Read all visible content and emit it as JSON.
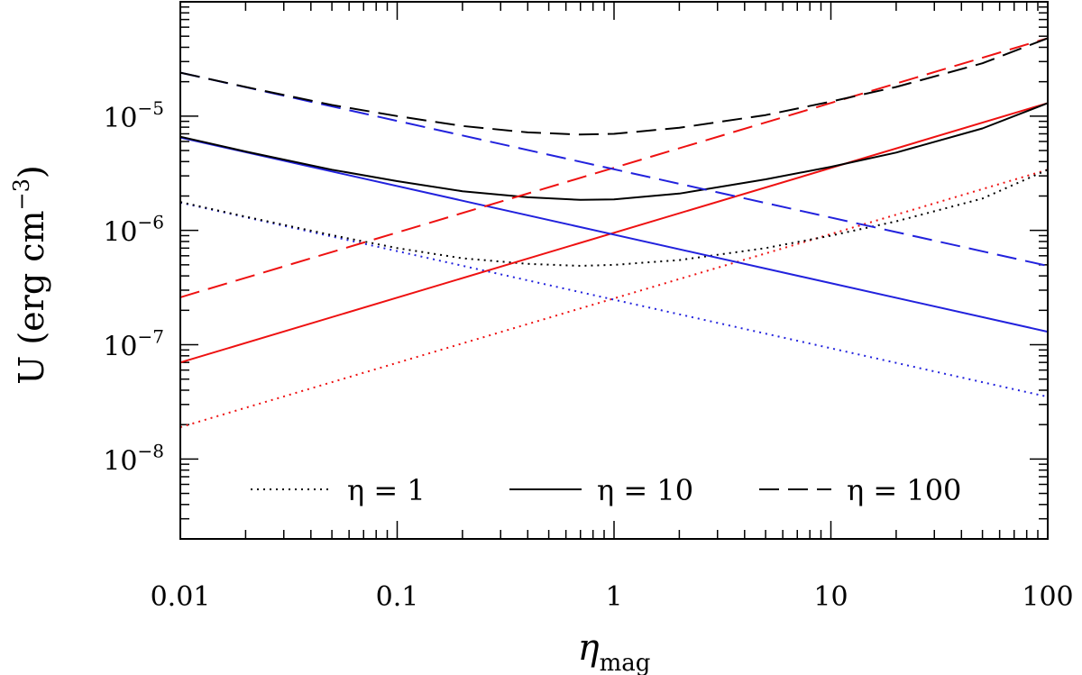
{
  "chart_data": {
    "type": "line",
    "x_scale": "log",
    "y_scale": "log",
    "xlim": [
      0.01,
      100
    ],
    "ylim": [
      2e-09,
      0.0001
    ],
    "grid": false,
    "legend_placement": "bottom",
    "xlabel": {
      "base": "η",
      "sub": "mag"
    },
    "ylabel": {
      "main": "U (erg cm",
      "sup": "−3",
      "close": ")"
    },
    "xticks": [
      {
        "value": 0.01,
        "label": "0.01"
      },
      {
        "value": 0.1,
        "label": "0.1"
      },
      {
        "value": 1,
        "label": "1"
      },
      {
        "value": 10,
        "label": "10"
      },
      {
        "value": 100,
        "label": "100"
      }
    ],
    "yticks": [
      {
        "value": 1e-08,
        "base": "10",
        "exp": "−8"
      },
      {
        "value": 1e-07,
        "base": "10",
        "exp": "−7"
      },
      {
        "value": 1e-06,
        "base": "10",
        "exp": "−6"
      },
      {
        "value": 1e-05,
        "base": "10",
        "exp": "−5"
      }
    ],
    "colors": {
      "total": "#000000",
      "particle": "#2222dd",
      "magnetic": "#ee1111"
    },
    "legend": [
      {
        "style": "dotted",
        "label": "η = 1"
      },
      {
        "style": "solid",
        "label": "η = 10"
      },
      {
        "style": "dashed",
        "label": "η = 100"
      }
    ],
    "series": [
      {
        "component": "magnetic",
        "style": "dotted",
        "color": "#ee1111",
        "x": [
          0.01,
          100
        ],
        "y": [
          1.9e-08,
          3.4e-06
        ]
      },
      {
        "component": "particle",
        "style": "dotted",
        "color": "#2222dd",
        "x": [
          0.01,
          100
        ],
        "y": [
          1.75e-06,
          3.5e-08
        ]
      },
      {
        "component": "total",
        "style": "dotted",
        "color": "#000000",
        "x": [
          0.01,
          0.02,
          0.05,
          0.1,
          0.2,
          0.4,
          0.7,
          1,
          2,
          5,
          10,
          20,
          50,
          100
        ],
        "y": [
          1.77e-06,
          1.32e-06,
          9.1e-07,
          7e-07,
          5.7e-07,
          5.1e-07,
          4.9e-07,
          5e-07,
          5.5e-07,
          7e-07,
          9e-07,
          1.2e-06,
          1.9e-06,
          3.4e-06
        ]
      },
      {
        "component": "magnetic",
        "style": "solid",
        "color": "#ee1111",
        "x": [
          0.01,
          100
        ],
        "y": [
          7e-08,
          1.3e-05
        ]
      },
      {
        "component": "particle",
        "style": "solid",
        "color": "#2222dd",
        "x": [
          0.01,
          100
        ],
        "y": [
          6.5e-06,
          1.3e-07
        ]
      },
      {
        "component": "total",
        "style": "solid",
        "color": "#000000",
        "x": [
          0.01,
          0.02,
          0.05,
          0.1,
          0.2,
          0.4,
          0.7,
          1,
          2,
          5,
          10,
          20,
          50,
          100
        ],
        "y": [
          6.6e-06,
          4.9e-06,
          3.4e-06,
          2.7e-06,
          2.2e-06,
          1.95e-06,
          1.85e-06,
          1.87e-06,
          2.1e-06,
          2.8e-06,
          3.6e-06,
          4.8e-06,
          7.8e-06,
          1.3e-05
        ]
      },
      {
        "component": "magnetic",
        "style": "dashed",
        "color": "#ee1111",
        "x": [
          0.01,
          100
        ],
        "y": [
          2.6e-07,
          4.8e-05
        ]
      },
      {
        "component": "particle",
        "style": "dashed",
        "color": "#2222dd",
        "x": [
          0.01,
          100
        ],
        "y": [
          2.4e-05,
          4.9e-07
        ]
      },
      {
        "component": "total",
        "style": "dashed",
        "color": "#000000",
        "x": [
          0.01,
          0.02,
          0.05,
          0.1,
          0.2,
          0.4,
          0.7,
          1,
          2,
          5,
          10,
          20,
          50,
          100
        ],
        "y": [
          2.4e-05,
          1.8e-05,
          1.25e-05,
          1e-05,
          8.2e-06,
          7.2e-06,
          6.9e-06,
          7e-06,
          7.9e-06,
          1.02e-05,
          1.34e-05,
          1.8e-05,
          2.9e-05,
          4.8e-05
        ]
      }
    ]
  }
}
